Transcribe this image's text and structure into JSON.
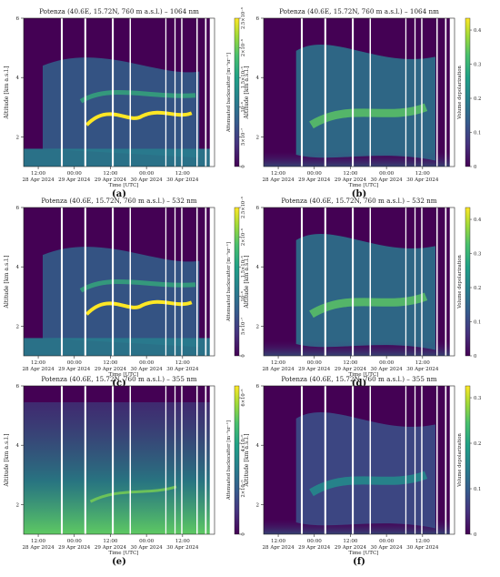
{
  "chart_data": [
    {
      "panel_label": "(a)",
      "type": "heatmap",
      "title": "Potenza (40.6E, 15.72N, 760 m a.s.l.) – 1064 nm",
      "xlabel": "Time [UTC]",
      "ylabel": "Altitude [km a.s.l.]",
      "x_ticks": [
        {
          "time": "12:00",
          "date": "28 Apr 2024"
        },
        {
          "time": "00:00",
          "date": "29 Apr 2024"
        },
        {
          "time": "12:00",
          "date": "29 Apr 2024"
        },
        {
          "time": "00:00",
          "date": "30 Apr 2024"
        },
        {
          "time": "12:00",
          "date": "30 Apr 2024"
        }
      ],
      "y_ticks": [
        "2",
        "4",
        "6"
      ],
      "ylim": [
        1,
        6
      ],
      "colorbar": {
        "label": "Attenuated backscatter [m⁻¹sr⁻¹]",
        "ticks": [
          "0",
          "5×10⁻⁷",
          "10⁻⁶",
          "1.5×10⁻⁶",
          "2×10⁻⁶",
          "2.5×10⁻⁶"
        ],
        "range": [
          0,
          2.5e-06
        ],
        "colormap": "viridis"
      }
    },
    {
      "panel_label": "(b)",
      "type": "heatmap",
      "title": "Potenza (40.6E, 15.72N, 760 m a.s.l.) – 1064 nm",
      "xlabel": "Time [UTC]",
      "ylabel": "Altitude [km a.s.l.]",
      "x_ticks": [
        {
          "time": "12:00",
          "date": "28 Apr 2024"
        },
        {
          "time": "00:00",
          "date": "29 Apr 2024"
        },
        {
          "time": "12:00",
          "date": "29 Apr 2024"
        },
        {
          "time": "00:00",
          "date": "30 Apr 2024"
        },
        {
          "time": "12:00",
          "date": "30 Apr 2024"
        }
      ],
      "y_ticks": [
        "2",
        "4",
        "6"
      ],
      "ylim": [
        1,
        6
      ],
      "colorbar": {
        "label": "Volume depolarization",
        "ticks": [
          "0",
          "0.1",
          "0.2",
          "0.3",
          "0.4"
        ],
        "range": [
          0,
          0.4
        ],
        "colormap": "viridis"
      }
    },
    {
      "panel_label": "(c)",
      "type": "heatmap",
      "title": "Potenza (40.6E, 15.72N, 760 m a.s.l.) – 532 nm",
      "xlabel": "Time [UTC]",
      "ylabel": "Altitude [km a.s.l.]",
      "x_ticks": [
        {
          "time": "12:00",
          "date": "28 Apr 2024"
        },
        {
          "time": "00:00",
          "date": "29 Apr 2024"
        },
        {
          "time": "12:00",
          "date": "29 Apr 2024"
        },
        {
          "time": "00:00",
          "date": "30 Apr 2024"
        },
        {
          "time": "12:00",
          "date": "30 Apr 2024"
        }
      ],
      "y_ticks": [
        "2",
        "4",
        "6"
      ],
      "ylim": [
        1,
        6
      ],
      "colorbar": {
        "label": "Attenuated backscatter [m⁻¹sr⁻¹]",
        "ticks": [
          "0",
          "5×10⁻⁷",
          "10⁻⁶",
          "1.5×10⁻⁶",
          "2×10⁻⁶",
          "2.5×10⁻⁶"
        ],
        "range": [
          0,
          2.5e-06
        ],
        "colormap": "viridis"
      }
    },
    {
      "panel_label": "(d)",
      "type": "heatmap",
      "title": "Potenza (40.6E, 15.72N, 760 m a.s.l.) – 532 nm",
      "xlabel": "Time [UTC]",
      "ylabel": "Altitude [km a.s.l.]",
      "x_ticks": [
        {
          "time": "12:00",
          "date": "28 Apr 2024"
        },
        {
          "time": "00:00",
          "date": "29 Apr 2024"
        },
        {
          "time": "12:00",
          "date": "29 Apr 2024"
        },
        {
          "time": "00:00",
          "date": "30 Apr 2024"
        },
        {
          "time": "12:00",
          "date": "30 Apr 2024"
        }
      ],
      "y_ticks": [
        "2",
        "4",
        "6"
      ],
      "ylim": [
        1,
        6
      ],
      "colorbar": {
        "label": "Volume depolarization",
        "ticks": [
          "0",
          "0.1",
          "0.2",
          "0.3",
          "0.4"
        ],
        "range": [
          0,
          0.4
        ],
        "colormap": "viridis"
      }
    },
    {
      "panel_label": "(e)",
      "type": "heatmap",
      "title": "Potenza (40.6E, 15.72N, 760 m a.s.l.) – 355 nm",
      "xlabel": "Time [UTC]",
      "ylabel": "Altitude [km a.s.l.]",
      "x_ticks": [
        {
          "time": "12:00",
          "date": "28 Apr 2024"
        },
        {
          "time": "00:00",
          "date": "29 Apr 2024"
        },
        {
          "time": "12:00",
          "date": "29 Apr 2024"
        },
        {
          "time": "00:00",
          "date": "30 Apr 2024"
        },
        {
          "time": "12:00",
          "date": "30 Apr 2024"
        }
      ],
      "y_ticks": [
        "2",
        "4",
        "6"
      ],
      "ylim": [
        1,
        6
      ],
      "colorbar": {
        "label": "Attenuated backscatter [m⁻¹sr⁻¹]",
        "ticks": [
          "0",
          "2×10⁻⁶",
          "4×10⁻⁶",
          "6×10⁻⁶"
        ],
        "range": [
          0,
          6.5e-06
        ],
        "colormap": "viridis"
      }
    },
    {
      "panel_label": "(f)",
      "type": "heatmap",
      "title": "Potenza (40.6E, 15.72N, 760 m a.s.l.) – 355 nm",
      "xlabel": "Time [UTC]",
      "ylabel": "Altitude [km a.s.l.]",
      "x_ticks": [
        {
          "time": "12:00",
          "date": "28 Apr 2024"
        },
        {
          "time": "00:00",
          "date": "29 Apr 2024"
        },
        {
          "time": "12:00",
          "date": "29 Apr 2024"
        },
        {
          "time": "00:00",
          "date": "30 Apr 2024"
        },
        {
          "time": "12:00",
          "date": "30 Apr 2024"
        }
      ],
      "y_ticks": [
        "2",
        "4",
        "6"
      ],
      "ylim": [
        1,
        6
      ],
      "colorbar": {
        "label": "Volume depolarization",
        "ticks": [
          "0",
          "0.1",
          "0.2",
          "0.3"
        ],
        "range": [
          0,
          0.3
        ],
        "colormap": "viridis"
      }
    }
  ]
}
